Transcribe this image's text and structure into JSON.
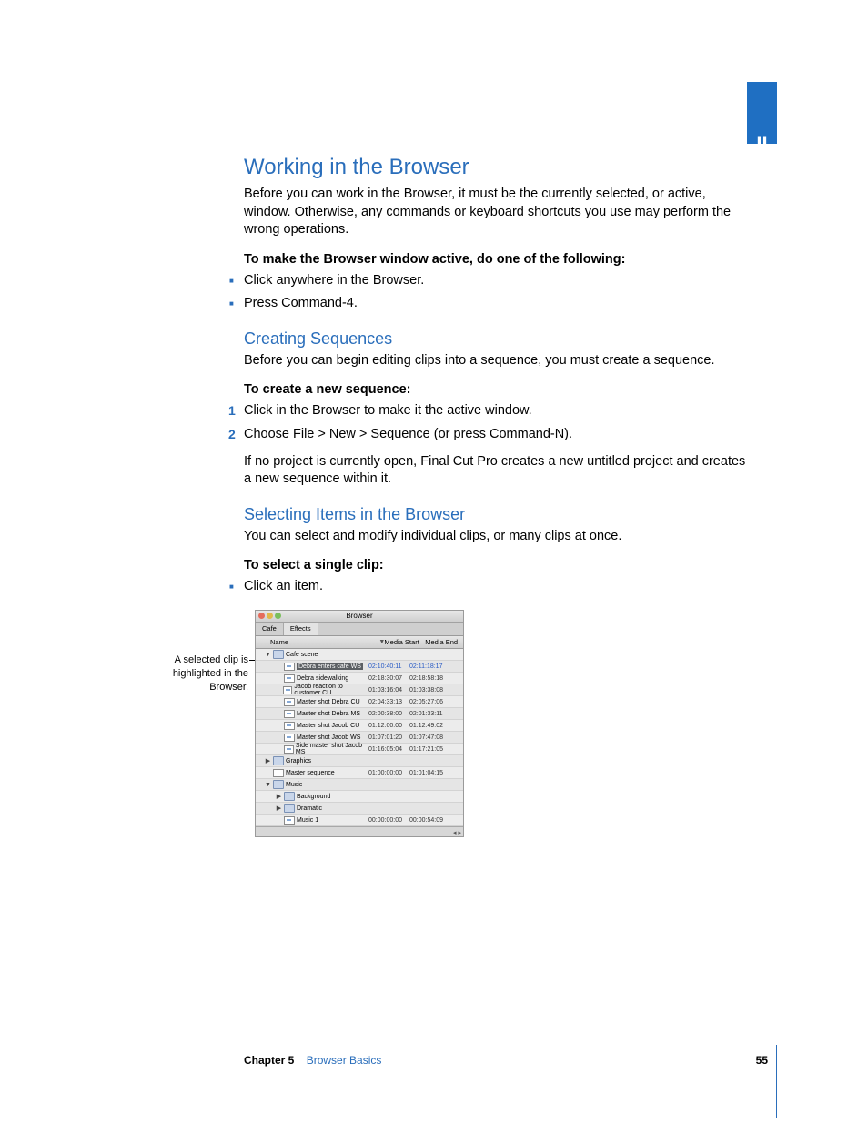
{
  "part_tab": "II",
  "h1": "Working in the Browser",
  "intro": "Before you can work in the Browser, it must be the currently selected, or active, window. Otherwise, any commands or keyboard shortcuts you use may perform the wrong operations.",
  "make_active_lead": "To make the Browser window active, do one of the following:",
  "make_active_bullets": [
    "Click anywhere in the Browser.",
    "Press Command-4."
  ],
  "h2_creating": "Creating Sequences",
  "creating_intro": "Before you can begin editing clips into a sequence, you must create a sequence.",
  "create_lead": "To create a new sequence:",
  "create_steps": [
    "Click in the Browser to make it the active window.",
    "Choose File > New > Sequence (or press Command-N)."
  ],
  "create_note": "If no project is currently open, Final Cut Pro creates a new untitled project and creates a new sequence within it.",
  "h2_selecting": "Selecting Items in the Browser",
  "selecting_intro": "You can select and modify individual clips, or many clips at once.",
  "select_single_lead": "To select a single clip:",
  "select_single_bullets": [
    "Click an item."
  ],
  "callout_text": "A selected clip is highlighted in the Browser.",
  "browser": {
    "window_title": "Browser",
    "traffic_colors": [
      "#e56c5c",
      "#e2b94a",
      "#7abf5b"
    ],
    "tabs": [
      "Cafe",
      "Effects"
    ],
    "columns": {
      "name": "Name",
      "media_start": "Media Start",
      "media_end": "Media End"
    },
    "rows": [
      {
        "kind": "bin",
        "disclosure": "▼",
        "indent": 1,
        "label": "Cafe scene",
        "ms": "",
        "me": ""
      },
      {
        "kind": "clip",
        "indent": 2,
        "selected": true,
        "label": "Debra enters cafe WS",
        "ms": "02:10:40:11",
        "me": "02:11:18:17"
      },
      {
        "kind": "clip",
        "indent": 2,
        "label": "Debra sidewalking",
        "ms": "02:18:30:07",
        "me": "02:18:58:18"
      },
      {
        "kind": "clip",
        "indent": 2,
        "label": "Jacob reaction to customer CU",
        "ms": "01:03:16:04",
        "me": "01:03:38:08"
      },
      {
        "kind": "clip",
        "indent": 2,
        "label": "Master shot Debra CU",
        "ms": "02:04:33:13",
        "me": "02:05:27:06"
      },
      {
        "kind": "clip",
        "indent": 2,
        "label": "Master shot Debra MS",
        "ms": "02:00:38:00",
        "me": "02:01:33:11"
      },
      {
        "kind": "clip",
        "indent": 2,
        "label": "Master shot Jacob CU",
        "ms": "01:12:00:00",
        "me": "01:12:49:02"
      },
      {
        "kind": "clip",
        "indent": 2,
        "label": "Master shot Jacob WS",
        "ms": "01:07:01:20",
        "me": "01:07:47:08"
      },
      {
        "kind": "clip",
        "indent": 2,
        "label": "Side master shot Jacob MS",
        "ms": "01:16:05:04",
        "me": "01:17:21:05"
      },
      {
        "kind": "bin",
        "disclosure": "▶",
        "indent": 1,
        "label": "Graphics",
        "ms": "",
        "me": ""
      },
      {
        "kind": "seq",
        "indent": 1,
        "label": "Master sequence",
        "ms": "01:00:00:00",
        "me": "01:01:04:15"
      },
      {
        "kind": "bin",
        "disclosure": "▼",
        "indent": 1,
        "label": "Music",
        "ms": "",
        "me": ""
      },
      {
        "kind": "bin",
        "disclosure": "▶",
        "indent": 2,
        "label": "Background",
        "ms": "",
        "me": ""
      },
      {
        "kind": "bin",
        "disclosure": "▶",
        "indent": 2,
        "label": "Dramatic",
        "ms": "",
        "me": ""
      },
      {
        "kind": "clip",
        "indent": 2,
        "label": "Music 1",
        "ms": "00:00:00:00",
        "me": "00:00:54:09"
      }
    ]
  },
  "footer": {
    "chapter_label": "Chapter 5",
    "chapter_title": "Browser Basics",
    "page_number": "55"
  },
  "colors": {
    "heading_blue": "#2a6ebb",
    "tab_blue": "#1f6fc2",
    "selected_row_bg": "#5b5f63",
    "selected_tc": "#2759c4"
  }
}
